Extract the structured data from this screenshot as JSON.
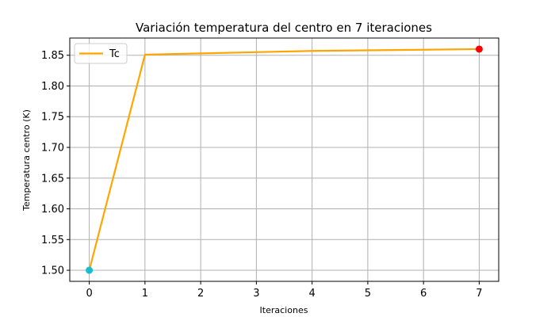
{
  "chart_data": {
    "type": "line",
    "title": "Variación temperatura del centro en 7 iteraciones",
    "xlabel": "Iteraciones",
    "ylabel": "Temperatura centro (K)",
    "xlim": [
      -0.35,
      7.35
    ],
    "ylim": [
      1.482,
      1.878
    ],
    "x_ticks": [
      0,
      1,
      2,
      3,
      4,
      5,
      6,
      7
    ],
    "y_ticks": [
      1.5,
      1.55,
      1.6,
      1.65,
      1.7,
      1.75,
      1.8,
      1.85
    ],
    "grid": true,
    "legend_position": "top-left",
    "series": [
      {
        "name": "Tc",
        "color": "#ffa500",
        "x": [
          0,
          1,
          2,
          3,
          4,
          5,
          6,
          7
        ],
        "values": [
          1.5,
          1.851,
          1.853,
          1.855,
          1.857,
          1.858,
          1.859,
          1.86
        ]
      }
    ],
    "markers": [
      {
        "x": 0,
        "y": 1.5,
        "color": "#17becf"
      },
      {
        "x": 7,
        "y": 1.86,
        "color": "#ff0000"
      }
    ]
  }
}
